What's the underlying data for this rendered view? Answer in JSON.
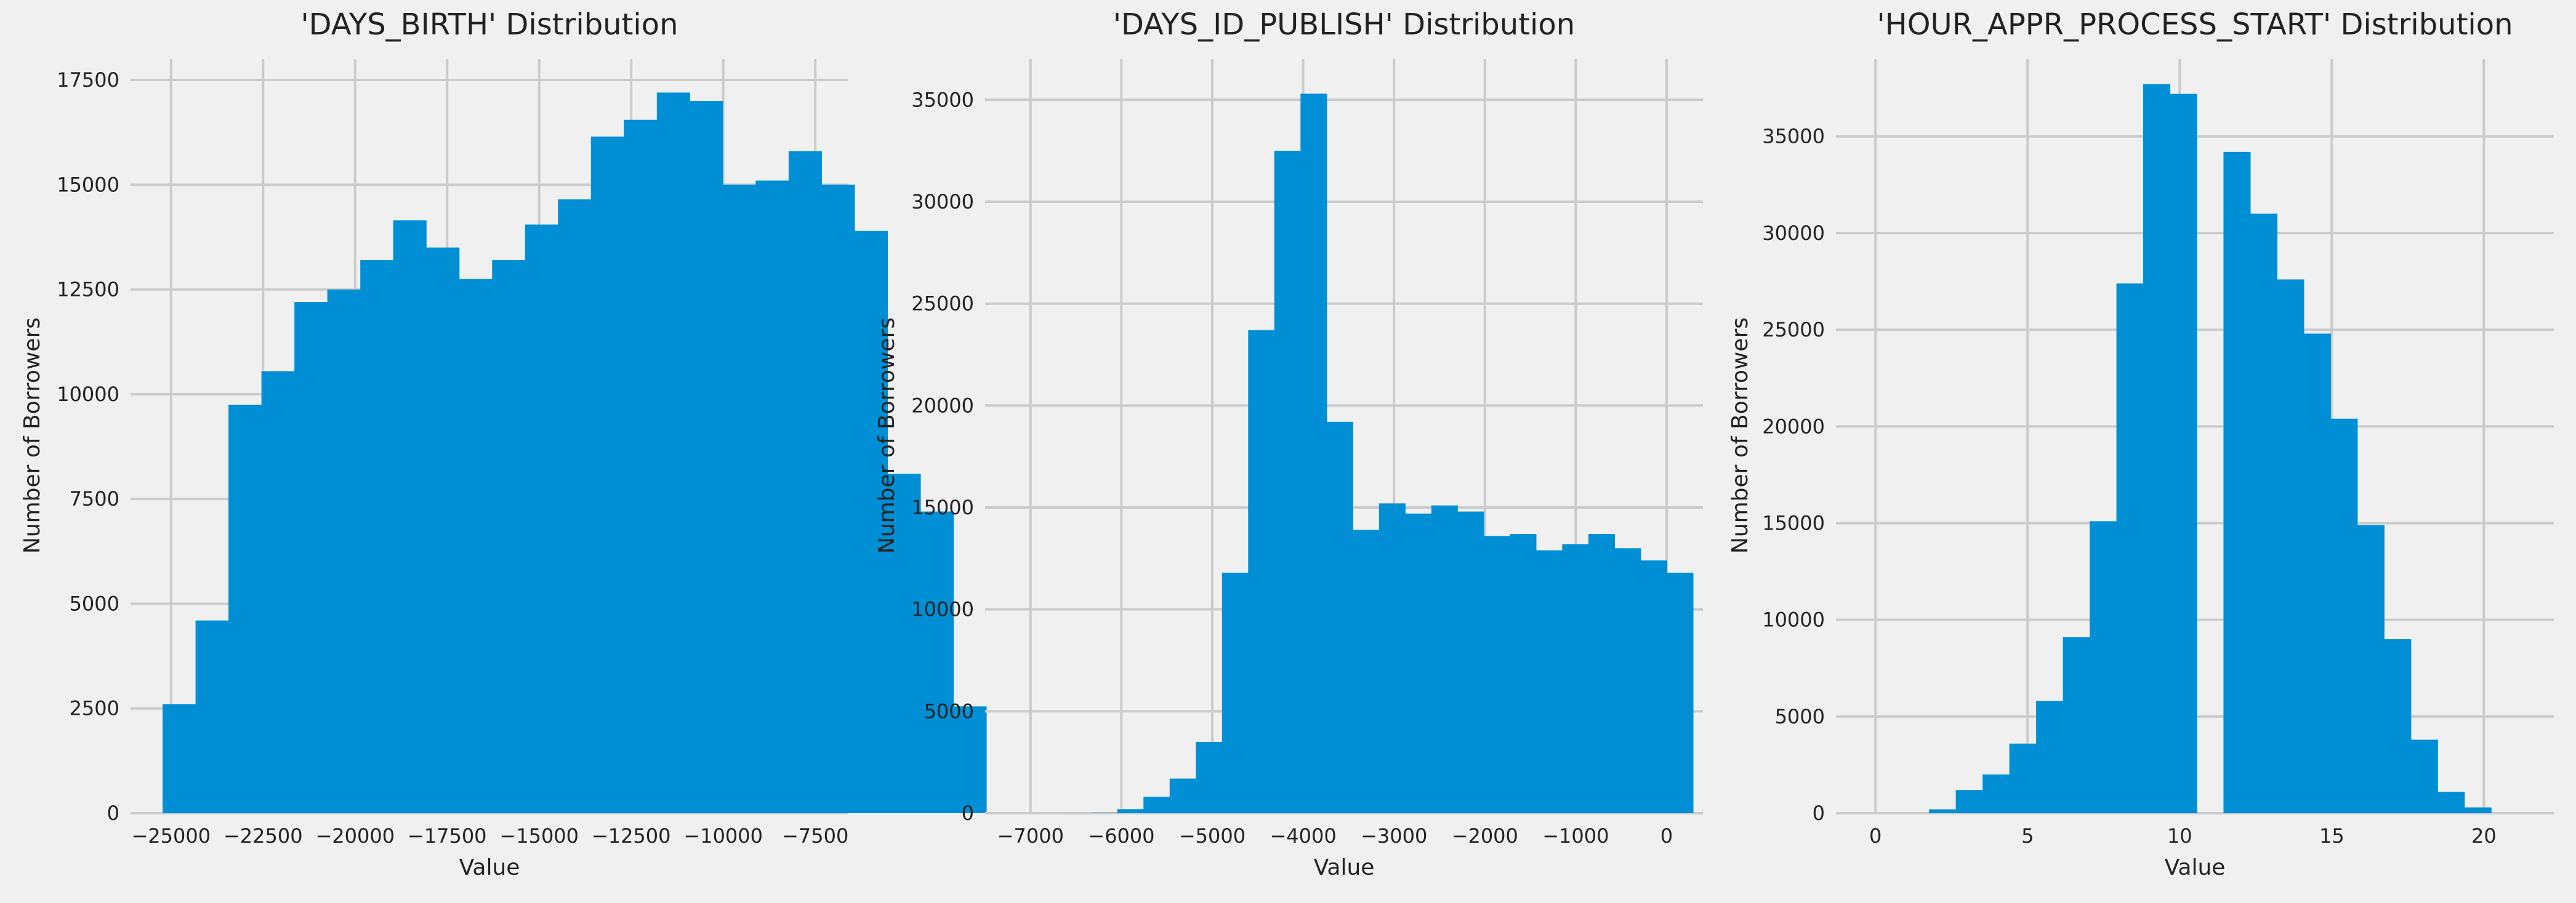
{
  "colors": {
    "background": "#f0f0f0",
    "bar": "#008fd5",
    "grid": "#cbcbcb",
    "text": "#222222"
  },
  "chart_data": [
    {
      "type": "bar",
      "title": "'DAYS_BIRTH' Distribution",
      "xlabel": "Value",
      "ylabel": "Number of Borrowers",
      "grid": true,
      "xlim": [
        -26100,
        -6600
      ],
      "ylim": [
        0,
        18000
      ],
      "xticks": [
        -25000,
        -22500,
        -20000,
        -17500,
        -15000,
        -12500,
        -10000,
        -7500
      ],
      "xtick_labels": [
        "−25000",
        "−22500",
        "−20000",
        "−17500",
        "−15000",
        "−12500",
        "−10000",
        "−7500"
      ],
      "yticks": [
        0,
        2500,
        5000,
        7500,
        10000,
        12500,
        15000,
        17500
      ],
      "ytick_labels": [
        "0",
        "2500",
        "5000",
        "7500",
        "10000",
        "12500",
        "15000",
        "17500"
      ],
      "bin_start": -25229,
      "bin_width": 895,
      "values": [
        2600,
        4600,
        9750,
        10550,
        12200,
        12500,
        13200,
        14150,
        13500,
        12750,
        13200,
        14050,
        14650,
        16150,
        16550,
        17200,
        17000,
        15000,
        15100,
        15800,
        15000,
        13900,
        8100,
        7200,
        2550
      ]
    },
    {
      "type": "bar",
      "title": "'DAYS_ID_PUBLISH' Distribution",
      "xlabel": "Value",
      "ylabel": "Number of Borrowers",
      "grid": true,
      "xlim": [
        -7500,
        400
      ],
      "ylim": [
        0,
        37000
      ],
      "xticks": [
        -7000,
        -6000,
        -5000,
        -4000,
        -3000,
        -2000,
        -1000,
        0
      ],
      "xtick_labels": [
        "−7000",
        "−6000",
        "−5000",
        "−4000",
        "−3000",
        "−2000",
        "−1000",
        "0"
      ],
      "yticks": [
        0,
        5000,
        10000,
        15000,
        20000,
        25000,
        30000,
        35000
      ],
      "ytick_labels": [
        "0",
        "5000",
        "10000",
        "15000",
        "20000",
        "25000",
        "30000",
        "35000"
      ],
      "bin_start": -7197,
      "bin_width": 288,
      "values": [
        0,
        0,
        5,
        20,
        200,
        800,
        1700,
        3500,
        11800,
        23700,
        32500,
        35300,
        19200,
        13900,
        15200,
        14700,
        15100,
        14800,
        13600,
        13700,
        12900,
        13200,
        13700,
        13000,
        12400,
        11800
      ]
    },
    {
      "type": "bar",
      "title": "'HOUR_APPR_PROCESS_START' Distribution",
      "xlabel": "Value",
      "ylabel": "Number of Borrowers",
      "grid": true,
      "xlim": [
        -1.3,
        22.3
      ],
      "ylim": [
        0,
        39000
      ],
      "xticks": [
        0,
        5,
        10,
        15,
        20
      ],
      "xtick_labels": [
        "0",
        "5",
        "10",
        "15",
        "20"
      ],
      "yticks": [
        0,
        5000,
        10000,
        15000,
        20000,
        25000,
        30000,
        35000
      ],
      "ytick_labels": [
        "0",
        "5000",
        "10000",
        "15000",
        "20000",
        "25000",
        "30000",
        "35000"
      ],
      "bin_start": 0,
      "bin_width": 0.88,
      "values": [
        0,
        0,
        200,
        1200,
        2000,
        3600,
        5800,
        9100,
        15100,
        27400,
        37700,
        37200,
        0,
        34200,
        31000,
        27600,
        24800,
        20400,
        14900,
        9000,
        3800,
        1100,
        300
      ]
    }
  ]
}
